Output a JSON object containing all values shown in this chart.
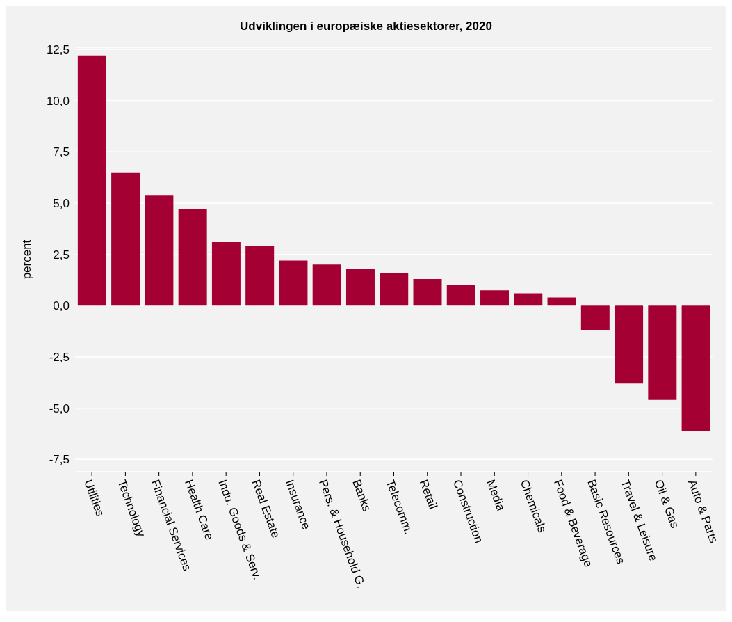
{
  "chart_data": {
    "type": "bar",
    "title": "Udviklingen i europæiske aktiesektorer, 2020",
    "ylabel": "percent",
    "categories": [
      "Utilities",
      "Technology",
      "Financial Services",
      "Health Care",
      "Indu. Goods & Serv.",
      "Real Estate",
      "Insurance",
      "Pers. & Household G.",
      "Banks",
      "Telecomm.",
      "Retail",
      "Construction",
      "Media",
      "Chemicals",
      "Food & Beverage",
      "Basic Resources",
      "Travel & Leisure",
      "Oil & Gas",
      "Auto & Parts"
    ],
    "values": [
      12.2,
      6.5,
      5.4,
      4.7,
      3.1,
      2.9,
      2.2,
      2.0,
      1.8,
      1.6,
      1.3,
      1.0,
      0.75,
      0.6,
      0.4,
      -1.2,
      -3.8,
      -4.6,
      -6.1
    ],
    "color": "#a50034",
    "ylim": [
      -8.1,
      12.6
    ],
    "yticks": [
      {
        "value": -7.5,
        "label": "-7,5"
      },
      {
        "value": -5,
        "label": "-5,0"
      },
      {
        "value": -2.5,
        "label": "-2,5"
      },
      {
        "value": 0,
        "label": "0,0"
      },
      {
        "value": 2.5,
        "label": "2,5"
      },
      {
        "value": 5,
        "label": "5,0"
      },
      {
        "value": 7.5,
        "label": "7,5"
      },
      {
        "value": 10,
        "label": "10,0"
      },
      {
        "value": 12.5,
        "label": "12,5"
      }
    ],
    "grid": "y"
  }
}
